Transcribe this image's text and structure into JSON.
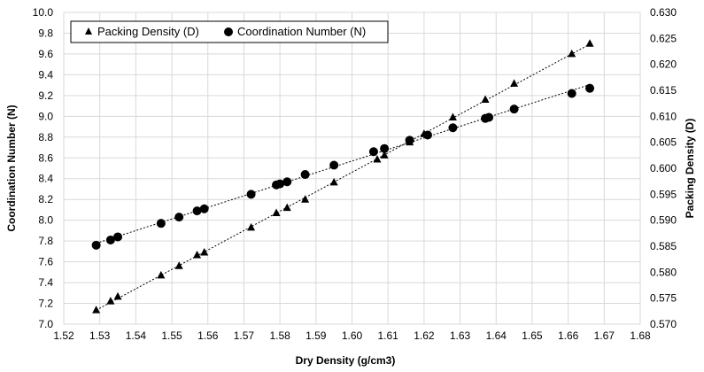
{
  "chart_data": {
    "type": "scatter",
    "title": "",
    "xlabel": "Dry Density (g/cm3)",
    "ylabel_left": "Coordination Number (N)",
    "ylabel_right": "Packing Density (D)",
    "xlim": [
      1.52,
      1.68
    ],
    "ylim_left": [
      7.0,
      10.0
    ],
    "ylim_right": [
      0.57,
      0.63
    ],
    "x_ticks": [
      "1.52",
      "1.53",
      "1.54",
      "1.55",
      "1.56",
      "1.57",
      "1.58",
      "1.59",
      "1.60",
      "1.61",
      "1.62",
      "1.63",
      "1.64",
      "1.65",
      "1.66",
      "1.67",
      "1.68"
    ],
    "y_left_ticks": [
      "7.0",
      "7.2",
      "7.4",
      "7.6",
      "7.8",
      "8.0",
      "8.2",
      "8.4",
      "8.6",
      "8.8",
      "9.0",
      "9.2",
      "9.4",
      "9.6",
      "9.8",
      "10.0"
    ],
    "y_right_ticks": [
      "0.570",
      "0.575",
      "0.580",
      "0.585",
      "0.590",
      "0.595",
      "0.600",
      "0.605",
      "0.610",
      "0.615",
      "0.620",
      "0.625",
      "0.630"
    ],
    "grid": true,
    "legend_position": "top-left",
    "series": [
      {
        "name": "Packing Density (D)",
        "axis": "right",
        "marker": "triangle",
        "color": "#000000",
        "trendline": true,
        "points": [
          [
            1.529,
            0.5727
          ],
          [
            1.533,
            0.5744
          ],
          [
            1.535,
            0.5753
          ],
          [
            1.547,
            0.5794
          ],
          [
            1.552,
            0.5812
          ],
          [
            1.557,
            0.5833
          ],
          [
            1.559,
            0.5838
          ],
          [
            1.572,
            0.5886
          ],
          [
            1.579,
            0.5914
          ],
          [
            1.582,
            0.5924
          ],
          [
            1.587,
            0.594
          ],
          [
            1.595,
            0.5973
          ],
          [
            1.607,
            0.6017
          ],
          [
            1.609,
            0.6025
          ],
          [
            1.616,
            0.605
          ],
          [
            1.62,
            0.6066
          ],
          [
            1.628,
            0.6098
          ],
          [
            1.637,
            0.6132
          ],
          [
            1.645,
            0.6163
          ],
          [
            1.661,
            0.622
          ],
          [
            1.666,
            0.624
          ]
        ]
      },
      {
        "name": "Coordination Number (N)",
        "axis": "left",
        "marker": "circle",
        "color": "#000000",
        "trendline": true,
        "points": [
          [
            1.529,
            7.76
          ],
          [
            1.533,
            7.81
          ],
          [
            1.535,
            7.84
          ],
          [
            1.547,
            7.97
          ],
          [
            1.552,
            8.03
          ],
          [
            1.557,
            8.09
          ],
          [
            1.559,
            8.11
          ],
          [
            1.572,
            8.25
          ],
          [
            1.579,
            8.34
          ],
          [
            1.58,
            8.35
          ],
          [
            1.582,
            8.37
          ],
          [
            1.587,
            8.44
          ],
          [
            1.595,
            8.53
          ],
          [
            1.606,
            8.66
          ],
          [
            1.609,
            8.69
          ],
          [
            1.616,
            8.77
          ],
          [
            1.621,
            8.82
          ],
          [
            1.628,
            8.89
          ],
          [
            1.637,
            8.98
          ],
          [
            1.638,
            8.99
          ],
          [
            1.645,
            9.07
          ],
          [
            1.661,
            9.22
          ],
          [
            1.666,
            9.27
          ]
        ]
      }
    ]
  }
}
